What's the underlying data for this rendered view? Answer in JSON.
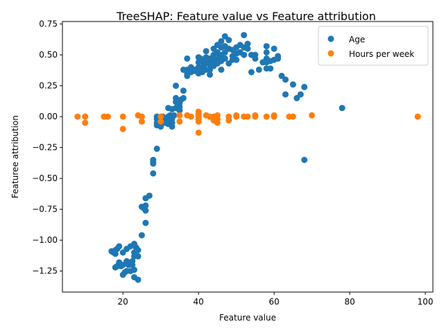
{
  "chart_data": {
    "type": "scatter",
    "title": "TreeSHAP: Feature value vs Feature attribution",
    "xlabel": "Feature value",
    "ylabel": "Featuree attribution",
    "xlim": [
      4,
      102
    ],
    "ylim": [
      -1.42,
      0.77
    ],
    "xticks": [
      "20",
      "40",
      "60",
      "80",
      "100"
    ],
    "xtick_values": [
      20,
      40,
      60,
      80,
      100
    ],
    "yticks": [
      "−1.25",
      "−1.00",
      "−0.75",
      "−0.50",
      "−0.25",
      "0.00",
      "0.25",
      "0.50",
      "0.75"
    ],
    "ytick_values": [
      -1.25,
      -1.0,
      -0.75,
      -0.5,
      -0.25,
      0.0,
      0.25,
      0.5,
      0.75
    ],
    "grid": false,
    "legend_position": "top-right",
    "series": [
      {
        "name": "Age",
        "color": "#1f77b4",
        "points": [
          [
            17,
            -1.09
          ],
          [
            17.5,
            -1.1
          ],
          [
            18,
            -1.08
          ],
          [
            18,
            -1.11
          ],
          [
            18.5,
            -1.07
          ],
          [
            19,
            -1.05
          ],
          [
            18,
            -1.22
          ],
          [
            18.5,
            -1.21
          ],
          [
            19,
            -1.18
          ],
          [
            19.5,
            -1.21
          ],
          [
            20,
            -1.1
          ],
          [
            20,
            -1.2
          ],
          [
            20,
            -1.28
          ],
          [
            20.5,
            -1.26
          ],
          [
            21,
            -1.07
          ],
          [
            21,
            -1.17
          ],
          [
            21,
            -1.25
          ],
          [
            21.5,
            -1.2
          ],
          [
            22,
            -1.05
          ],
          [
            22,
            -1.18
          ],
          [
            22,
            -1.25
          ],
          [
            22.5,
            -1.17
          ],
          [
            22.5,
            -1.2
          ],
          [
            23,
            -1.03
          ],
          [
            23,
            -1.1
          ],
          [
            23,
            -1.13
          ],
          [
            23,
            -1.24
          ],
          [
            23,
            -1.3
          ],
          [
            23.5,
            -1.06
          ],
          [
            24,
            -1.08
          ],
          [
            24,
            -1.13
          ],
          [
            24,
            -1.32
          ],
          [
            25,
            -0.73
          ],
          [
            25,
            -0.96
          ],
          [
            25.5,
            -0.74
          ],
          [
            26,
            -0.66
          ],
          [
            26,
            -0.72
          ],
          [
            26,
            -0.76
          ],
          [
            26,
            -0.86
          ],
          [
            27,
            -0.64
          ],
          [
            28,
            -0.35
          ],
          [
            28,
            -0.37
          ],
          [
            28,
            -0.38
          ],
          [
            28,
            -0.46
          ],
          [
            29,
            -0.26
          ],
          [
            29,
            0.0
          ],
          [
            29,
            -0.02
          ],
          [
            29,
            -0.05
          ],
          [
            29,
            -0.07
          ],
          [
            30,
            -0.01
          ],
          [
            30,
            -0.04
          ],
          [
            30,
            -0.08
          ],
          [
            30.5,
            0.0
          ],
          [
            31,
            -0.02
          ],
          [
            31,
            -0.05
          ],
          [
            32,
            0.07
          ],
          [
            32,
            0.0
          ],
          [
            32,
            -0.03
          ],
          [
            32,
            -0.06
          ],
          [
            32.5,
            0.01
          ],
          [
            33,
            0.06
          ],
          [
            33,
            -0.02
          ],
          [
            33,
            -0.05
          ],
          [
            33,
            -0.08
          ],
          [
            33.5,
            0.01
          ],
          [
            34,
            0.25
          ],
          [
            34,
            0.15
          ],
          [
            34,
            0.12
          ],
          [
            34,
            0.07
          ],
          [
            34.5,
            0.09
          ],
          [
            35,
            0.11
          ],
          [
            35,
            0.08
          ],
          [
            35,
            0.05
          ],
          [
            35.5,
            0.14
          ],
          [
            36,
            0.21
          ],
          [
            36,
            0.15
          ],
          [
            36,
            0.38
          ],
          [
            37,
            0.47
          ],
          [
            37,
            0.38
          ],
          [
            37,
            0.35
          ],
          [
            37,
            0.33
          ],
          [
            38,
            0.36
          ],
          [
            38,
            0.38
          ],
          [
            38,
            0.4
          ],
          [
            39,
            0.37
          ],
          [
            39,
            0.38
          ],
          [
            40,
            0.48
          ],
          [
            40,
            0.44
          ],
          [
            40,
            0.4
          ],
          [
            40,
            0.37
          ],
          [
            40,
            0.35
          ],
          [
            40.5,
            0.47
          ],
          [
            41,
            0.45
          ],
          [
            41,
            0.4
          ],
          [
            41,
            0.36
          ],
          [
            41.5,
            0.42
          ],
          [
            42,
            0.53
          ],
          [
            42,
            0.48
          ],
          [
            42,
            0.44
          ],
          [
            42,
            0.38
          ],
          [
            42.5,
            0.46
          ],
          [
            43,
            0.47
          ],
          [
            43,
            0.42
          ],
          [
            43,
            0.38
          ],
          [
            43,
            0.34
          ],
          [
            43.5,
            0.45
          ],
          [
            44,
            0.55
          ],
          [
            44,
            0.5
          ],
          [
            44,
            0.46
          ],
          [
            44,
            0.41
          ],
          [
            44.5,
            0.44
          ],
          [
            45,
            0.58
          ],
          [
            45,
            0.52
          ],
          [
            45,
            0.46
          ],
          [
            45,
            0.43
          ],
          [
            45.5,
            0.48
          ],
          [
            46,
            0.61
          ],
          [
            46,
            0.56
          ],
          [
            46,
            0.5
          ],
          [
            46,
            0.45
          ],
          [
            46,
            0.38
          ],
          [
            47,
            0.65
          ],
          [
            47,
            0.57
          ],
          [
            47,
            0.52
          ],
          [
            47,
            0.47
          ],
          [
            48,
            0.62
          ],
          [
            48,
            0.55
          ],
          [
            48,
            0.43
          ],
          [
            49,
            0.54
          ],
          [
            49,
            0.49
          ],
          [
            49,
            0.46
          ],
          [
            50,
            0.56
          ],
          [
            50,
            0.51
          ],
          [
            50,
            0.46
          ],
          [
            51,
            0.58
          ],
          [
            51,
            0.52
          ],
          [
            52,
            0.66
          ],
          [
            52,
            0.56
          ],
          [
            52,
            0.5
          ],
          [
            53,
            0.59
          ],
          [
            53,
            0.55
          ],
          [
            54,
            0.5
          ],
          [
            54,
            0.36
          ],
          [
            55,
            0.5
          ],
          [
            55,
            0.47
          ],
          [
            56,
            0.38
          ],
          [
            57,
            0.44
          ],
          [
            58,
            0.57
          ],
          [
            58,
            0.52
          ],
          [
            58,
            0.47
          ],
          [
            58,
            0.44
          ],
          [
            58,
            0.39
          ],
          [
            59,
            0.45
          ],
          [
            59,
            0.39
          ],
          [
            60,
            0.55
          ],
          [
            60,
            0.46
          ],
          [
            61,
            0.49
          ],
          [
            61,
            0.47
          ],
          [
            62,
            0.33
          ],
          [
            63,
            0.3
          ],
          [
            63,
            0.18
          ],
          [
            65,
            0.26
          ],
          [
            66,
            0.15
          ],
          [
            67,
            0.18
          ],
          [
            68,
            0.24
          ],
          [
            68,
            -0.35
          ],
          [
            78,
            0.07
          ]
        ]
      },
      {
        "name": "Hours per week",
        "color": "#ff7f0e",
        "points": [
          [
            8,
            0.0
          ],
          [
            10,
            0.0
          ],
          [
            10,
            -0.05
          ],
          [
            15,
            0.0
          ],
          [
            16,
            0.0
          ],
          [
            20,
            0.0
          ],
          [
            20,
            -0.1
          ],
          [
            24,
            0.01
          ],
          [
            25,
            0.0
          ],
          [
            25,
            -0.04
          ],
          [
            30,
            0.0
          ],
          [
            30,
            -0.04
          ],
          [
            35,
            0.01
          ],
          [
            35,
            -0.04
          ],
          [
            37,
            0.01
          ],
          [
            38,
            0.0
          ],
          [
            40,
            0.04
          ],
          [
            40,
            0.02
          ],
          [
            40,
            0.0
          ],
          [
            40,
            -0.02
          ],
          [
            40,
            -0.04
          ],
          [
            40,
            -0.13
          ],
          [
            42,
            0.01
          ],
          [
            43,
            0.0
          ],
          [
            44,
            0.0
          ],
          [
            44,
            -0.03
          ],
          [
            45,
            0.01
          ],
          [
            45,
            -0.02
          ],
          [
            45,
            -0.05
          ],
          [
            48,
            0.0
          ],
          [
            48,
            -0.03
          ],
          [
            50,
            0.01
          ],
          [
            50,
            0.0
          ],
          [
            52,
            0.0
          ],
          [
            53,
            0.0
          ],
          [
            55,
            0.01
          ],
          [
            55,
            0.0
          ],
          [
            58,
            0.0
          ],
          [
            60,
            0.01
          ],
          [
            60,
            0.0
          ],
          [
            64,
            0.0
          ],
          [
            65,
            0.0
          ],
          [
            70,
            0.01
          ],
          [
            98,
            0.0
          ]
        ]
      }
    ]
  }
}
